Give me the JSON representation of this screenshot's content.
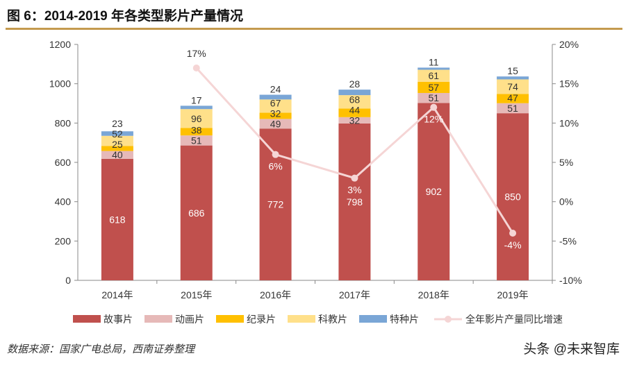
{
  "title": "图 6：2014-2019 年各类型影片产量情况",
  "source": "数据来源：国家广电总局，西南证券整理",
  "watermark": "头条 @未来智库",
  "chart_data": {
    "type": "bar",
    "stacked": true,
    "categories": [
      "2014年",
      "2015年",
      "2016年",
      "2017年",
      "2018年",
      "2019年"
    ],
    "series": [
      {
        "name": "故事片",
        "color": "#c0504d",
        "values": [
          618,
          686,
          772,
          798,
          902,
          850
        ]
      },
      {
        "name": "动画片",
        "color": "#e6b9b8",
        "values": [
          40,
          51,
          49,
          32,
          51,
          51
        ]
      },
      {
        "name": "纪录片",
        "color": "#ffc000",
        "values": [
          25,
          38,
          32,
          44,
          57,
          47
        ]
      },
      {
        "name": "科教片",
        "color": "#ffe08a",
        "values": [
          52,
          96,
          67,
          68,
          61,
          74
        ]
      },
      {
        "name": "特种片",
        "color": "#7aa6d6",
        "values": [
          23,
          17,
          24,
          28,
          11,
          15
        ]
      }
    ],
    "line": {
      "name": "全年影片产量同比增速",
      "color": "#f5d5d5",
      "axis": "right",
      "values": [
        null,
        17,
        6,
        3,
        12,
        -4
      ],
      "labels": [
        "",
        "17%",
        "6%",
        "3%",
        "12%",
        "-4%"
      ]
    },
    "ylim": [
      0,
      1200
    ],
    "yticks": [
      "0",
      "200",
      "400",
      "600",
      "800",
      "1000",
      "1200"
    ],
    "y2lim": [
      -10,
      20
    ],
    "y2ticks": [
      "-10%",
      "-5%",
      "0%",
      "5%",
      "10%",
      "15%",
      "20%"
    ],
    "legend": "bottom",
    "grid": false
  }
}
